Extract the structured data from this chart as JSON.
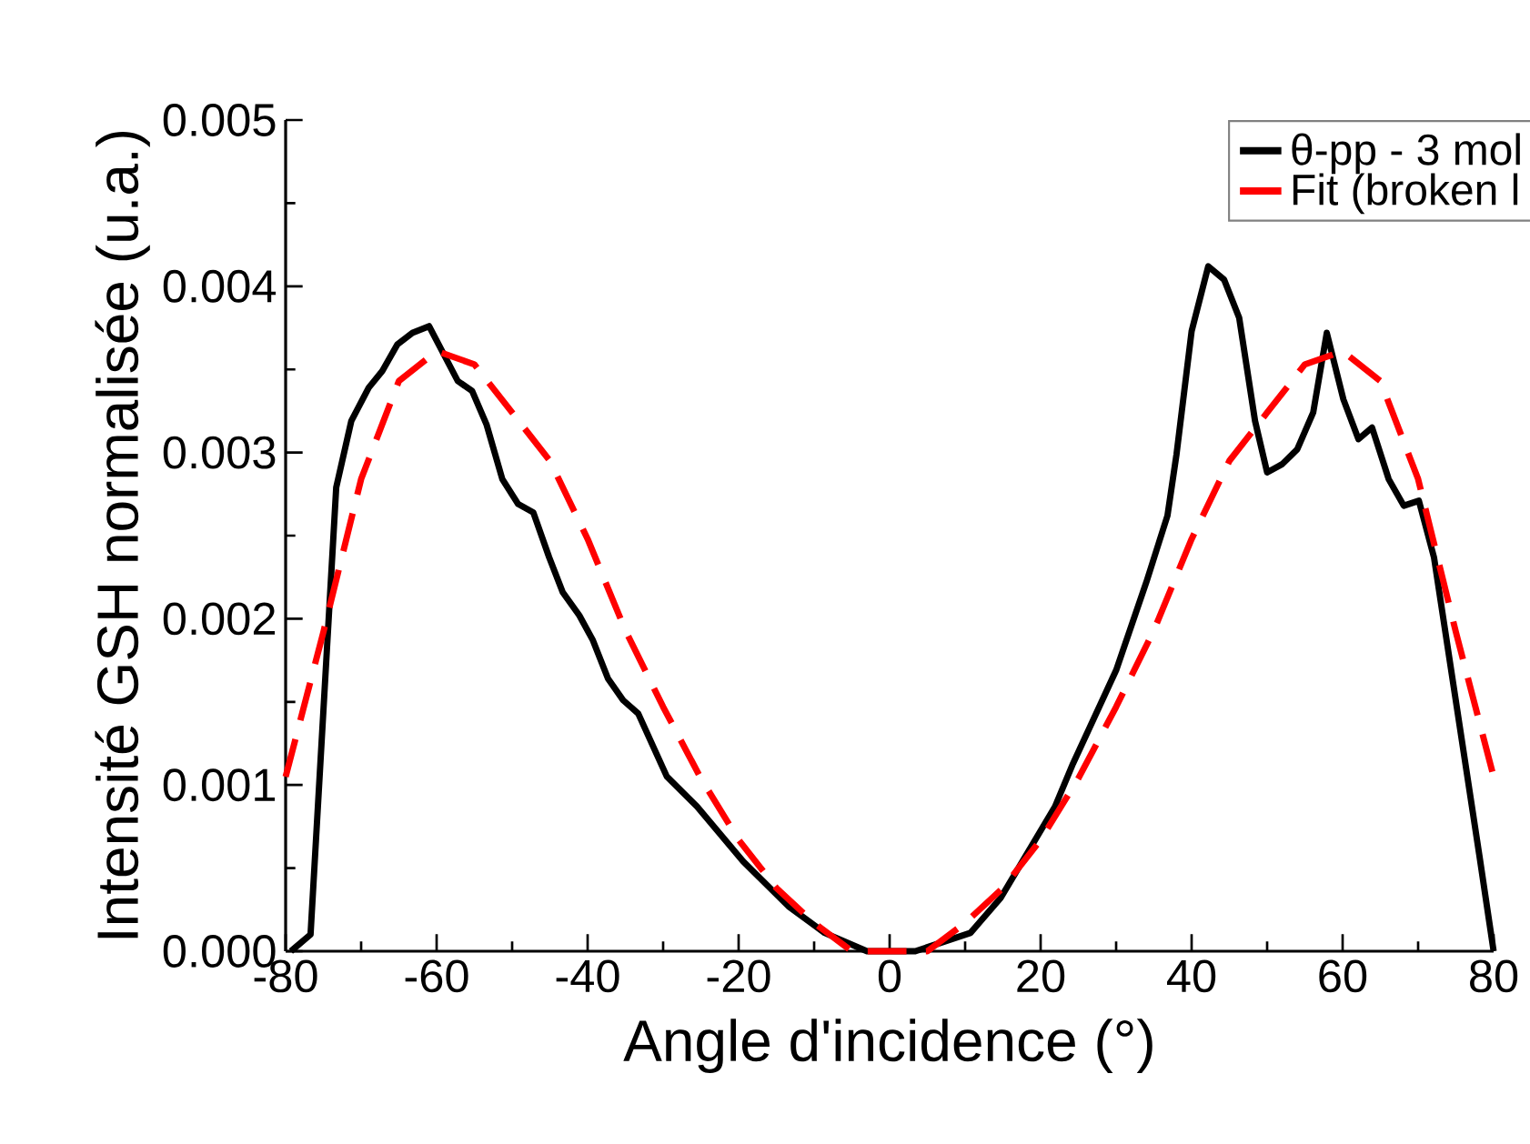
{
  "chart_data": {
    "type": "line",
    "xlabel": "Angle d'incidence (°)",
    "ylabel": "Intensité GSH normalisée (u.a.)",
    "xlim": [
      -80,
      80
    ],
    "xticks": [
      -80,
      -60,
      -40,
      -20,
      0,
      20,
      40,
      60,
      80
    ],
    "ylim": [
      0,
      0.005
    ],
    "yticks": [
      {
        "value": 0,
        "label": "0.000"
      },
      0.001,
      0.002,
      0.003,
      0.004,
      0.005
    ],
    "legend": "top right",
    "series": [
      {
        "name": "θ-pp - 3 mol",
        "color": "#000000",
        "line_style": "solid",
        "x": [
          -79.3,
          -76.7,
          -73.3,
          -71.3,
          -69,
          -67.2,
          -65.2,
          -63.2,
          -61,
          -57.2,
          -55.3,
          -53.4,
          -51.3,
          -49.2,
          -47.2,
          -45.1,
          -43.3,
          -41.1,
          -39.3,
          -37.3,
          -35.3,
          -33.3,
          -29.5,
          -25.5,
          -19.4,
          -13.4,
          -8.6,
          -3,
          0,
          3.4,
          10.7,
          14.7,
          21.9,
          24.3,
          30,
          34,
          36.8,
          38,
          40,
          42.2,
          44.3,
          46.3,
          48.4,
          50,
          52,
          54,
          56.1,
          57.9,
          60.1,
          62.1,
          63.9,
          66.1,
          68.1,
          70.1,
          72.1,
          78.1,
          80
        ],
        "values": [
          0,
          0.0001,
          0.00279,
          0.00319,
          0.00339,
          0.00349,
          0.00365,
          0.00372,
          0.00376,
          0.00343,
          0.00337,
          0.00317,
          0.00284,
          0.00269,
          0.00264,
          0.00237,
          0.00216,
          0.00202,
          0.00187,
          0.00164,
          0.00151,
          0.00143,
          0.00105,
          0.00087,
          0.00054,
          0.00027,
          0.00011,
          0,
          0,
          0,
          0.00011,
          0.00032,
          0.00087,
          0.00113,
          0.00169,
          0.00222,
          0.00262,
          0.00299,
          0.00373,
          0.00412,
          0.00404,
          0.00381,
          0.00319,
          0.00288,
          0.00293,
          0.00302,
          0.00324,
          0.00372,
          0.00332,
          0.00308,
          0.00315,
          0.00284,
          0.00268,
          0.00271,
          0.00237,
          0.00058,
          0
        ]
      },
      {
        "name": "Fit (broken l",
        "color": "#ff0000",
        "line_style": "dashed",
        "x": [
          -80,
          -75,
          -70,
          -65,
          -60,
          -55,
          -50,
          -45,
          -40,
          -35,
          -30,
          -25,
          -20,
          -15,
          -10,
          -5,
          0,
          5,
          10,
          15,
          20,
          25,
          30,
          35,
          40,
          45,
          50,
          55,
          60,
          65,
          70,
          75,
          80
        ],
        "values": [
          0.00105,
          0.00192,
          0.00284,
          0.00343,
          0.00361,
          0.00353,
          0.00324,
          0.00295,
          0.00248,
          0.00193,
          0.00147,
          0.00104,
          0.00067,
          0.00038,
          0.00017,
          0,
          0,
          0,
          0.00017,
          0.00038,
          0.00067,
          0.00104,
          0.00147,
          0.00193,
          0.00248,
          0.00295,
          0.00324,
          0.00353,
          0.00361,
          0.00343,
          0.00284,
          0.00192,
          0.00105
        ]
      }
    ]
  }
}
